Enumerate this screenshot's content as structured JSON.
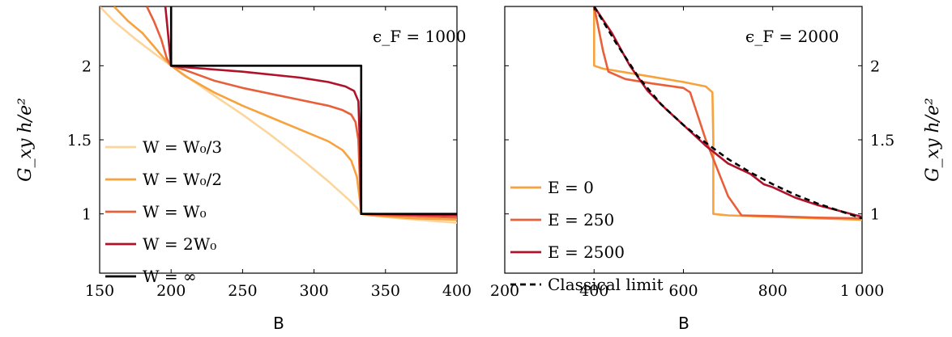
{
  "chart_data": [
    {
      "type": "line",
      "panel": "left",
      "xlabel": "B",
      "ylabel": "G_xy h/e²",
      "xlim": [
        150,
        400
      ],
      "ylim": [
        0.6,
        2.4
      ],
      "xticks": [
        "150",
        "200",
        "250",
        "300",
        "350",
        "400"
      ],
      "yticks": [
        "1",
        "1.5",
        "2"
      ],
      "annotation": "ϵ_F = 1000",
      "legend_placement": "bottom-left",
      "series": [
        {
          "name": "W = W₀/3",
          "color": "#fcd59c",
          "x": [
            150,
            160,
            175,
            190,
            200,
            215,
            230,
            250,
            270,
            290,
            310,
            325,
            330,
            333,
            340,
            360,
            380,
            400
          ],
          "y": [
            2.4,
            2.3,
            2.18,
            2.07,
            2.0,
            1.9,
            1.8,
            1.67,
            1.53,
            1.38,
            1.22,
            1.09,
            1.04,
            1.0,
            0.99,
            0.97,
            0.955,
            0.94
          ]
        },
        {
          "name": "W = W₀/2",
          "color": "#f7a23c",
          "x": [
            160,
            170,
            180,
            188,
            195,
            200,
            210,
            230,
            250,
            270,
            290,
            310,
            320,
            326,
            330,
            332,
            333,
            340,
            370,
            400
          ],
          "y": [
            2.4,
            2.3,
            2.22,
            2.13,
            2.05,
            2.0,
            1.93,
            1.82,
            1.73,
            1.65,
            1.57,
            1.49,
            1.43,
            1.36,
            1.25,
            1.1,
            1.0,
            0.99,
            0.97,
            0.96
          ]
        },
        {
          "name": "W = W₀",
          "color": "#e8603a",
          "x": [
            183,
            188,
            193,
            197,
            200,
            210,
            230,
            250,
            270,
            290,
            310,
            320,
            326,
            329,
            331,
            332,
            333,
            340,
            370,
            400
          ],
          "y": [
            2.4,
            2.3,
            2.18,
            2.05,
            2.0,
            1.97,
            1.9,
            1.85,
            1.81,
            1.77,
            1.73,
            1.7,
            1.67,
            1.62,
            1.5,
            1.25,
            1.0,
            0.995,
            0.985,
            0.975
          ]
        },
        {
          "name": "W = 2W₀",
          "color": "#b0122a",
          "x": [
            196,
            198,
            199.5,
            200,
            210,
            250,
            290,
            310,
            322,
            328,
            331,
            332,
            333,
            340,
            370,
            400
          ],
          "y": [
            2.4,
            2.2,
            2.05,
            2.0,
            1.99,
            1.96,
            1.92,
            1.89,
            1.86,
            1.83,
            1.76,
            1.5,
            1.0,
            1.0,
            0.995,
            0.99
          ]
        },
        {
          "name": "W = ∞",
          "color": "#000000",
          "x": [
            200,
            200,
            333,
            333,
            400
          ],
          "y": [
            2.4,
            2.0,
            2.0,
            1.0,
            1.0
          ]
        }
      ]
    },
    {
      "type": "line",
      "panel": "right",
      "xlabel": "B",
      "ylabel": "G_xy h/e²",
      "xlim": [
        200,
        1000
      ],
      "ylim": [
        0.6,
        2.4
      ],
      "xticks": [
        "200",
        "400",
        "600",
        "800",
        "1 000"
      ],
      "yticks": [
        "1",
        "1.5",
        "2"
      ],
      "annotation": "ϵ_F = 2000",
      "legend_placement": "bottom-left",
      "series": [
        {
          "name": "E = 0",
          "color": "#f7a23c",
          "x": [
            400,
            400,
            420,
            500,
            600,
            650,
            665,
            667,
            667,
            700,
            800,
            900,
            1000
          ],
          "y": [
            2.4,
            2.0,
            1.98,
            1.94,
            1.89,
            1.86,
            1.82,
            1.5,
            1.0,
            0.99,
            0.98,
            0.97,
            0.96
          ]
        },
        {
          "name": "E = 250",
          "color": "#e8603a",
          "x": [
            400,
            410,
            420,
            432,
            470,
            530,
            600,
            615,
            650,
            700,
            730,
            800,
            900,
            1000
          ],
          "y": [
            2.4,
            2.25,
            2.1,
            1.96,
            1.91,
            1.88,
            1.85,
            1.82,
            1.5,
            1.12,
            0.99,
            0.985,
            0.975,
            0.97
          ]
        },
        {
          "name": "E = 2500",
          "color": "#b0122a",
          "x": [
            400,
            440,
            480,
            520,
            540,
            560,
            600,
            650,
            700,
            750,
            780,
            800,
            850,
            900,
            950,
            1000
          ],
          "y": [
            2.4,
            2.22,
            2.0,
            1.83,
            1.77,
            1.71,
            1.6,
            1.46,
            1.34,
            1.27,
            1.2,
            1.18,
            1.11,
            1.06,
            1.02,
            0.98
          ]
        },
        {
          "name": "Classical limit",
          "color": "#000000",
          "dashed": true,
          "x": [
            400,
            450,
            500,
            550,
            600,
            650,
            700,
            750,
            800,
            850,
            900,
            950,
            1000
          ],
          "y": [
            2.4,
            2.15,
            1.92,
            1.74,
            1.6,
            1.48,
            1.37,
            1.28,
            1.2,
            1.13,
            1.07,
            1.02,
            0.97
          ]
        }
      ]
    }
  ]
}
